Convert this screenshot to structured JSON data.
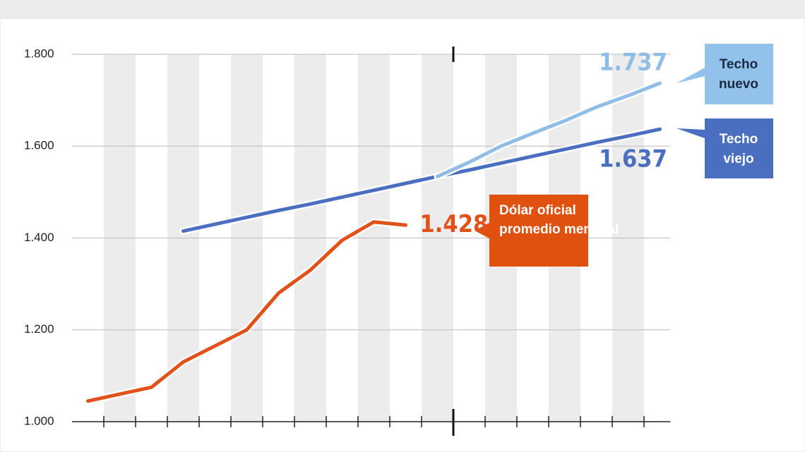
{
  "chart_data": {
    "type": "line",
    "categories": [
      null,
      null,
      null,
      null,
      null,
      null,
      null,
      null,
      null,
      null,
      null,
      null,
      null,
      null,
      null,
      null,
      null,
      null,
      null
    ],
    "series": [
      {
        "name": "Dólar oficial promedio mensual",
        "color": "#e0521a",
        "values": [
          1045,
          1060,
          1075,
          1130,
          1165,
          1200,
          1280,
          1330,
          1395,
          1435,
          1428,
          null,
          null,
          null,
          null,
          null,
          null,
          null,
          null
        ],
        "value_labels": [
          null,
          null,
          null,
          null,
          null,
          null,
          null,
          null,
          null,
          null,
          "1.428",
          null,
          null,
          null,
          null,
          null,
          null,
          null,
          null
        ]
      },
      {
        "name": "Techo viejo",
        "color": "#4a6fc0",
        "values": [
          null,
          null,
          null,
          1415,
          1430,
          1445,
          1460,
          1474,
          1489,
          1504,
          1519,
          1534,
          1548,
          1563,
          1578,
          1593,
          1608,
          1622,
          1637
        ],
        "value_labels": [
          null,
          null,
          null,
          null,
          null,
          null,
          null,
          null,
          null,
          null,
          null,
          null,
          null,
          null,
          null,
          null,
          null,
          null,
          "1.637"
        ]
      },
      {
        "name": "Techo nuevo",
        "color": "#8fbde6",
        "values": [
          null,
          null,
          null,
          null,
          null,
          null,
          null,
          null,
          null,
          null,
          null,
          1534,
          1565,
          1600,
          1628,
          1655,
          1685,
          1710,
          1737
        ],
        "value_labels": [
          null,
          null,
          null,
          null,
          null,
          null,
          null,
          null,
          null,
          null,
          null,
          null,
          null,
          null,
          null,
          null,
          null,
          null,
          "1.737"
        ]
      }
    ],
    "ylim": [
      1000,
      1800
    ],
    "yticks": [
      {
        "value": 1000,
        "label": "1.000"
      },
      {
        "value": 1200,
        "label": "1.200"
      },
      {
        "value": 1400,
        "label": "1.400"
      },
      {
        "value": 1600,
        "label": "1.600"
      },
      {
        "value": 1800,
        "label": "1.800"
      }
    ],
    "grid": true
  }
}
